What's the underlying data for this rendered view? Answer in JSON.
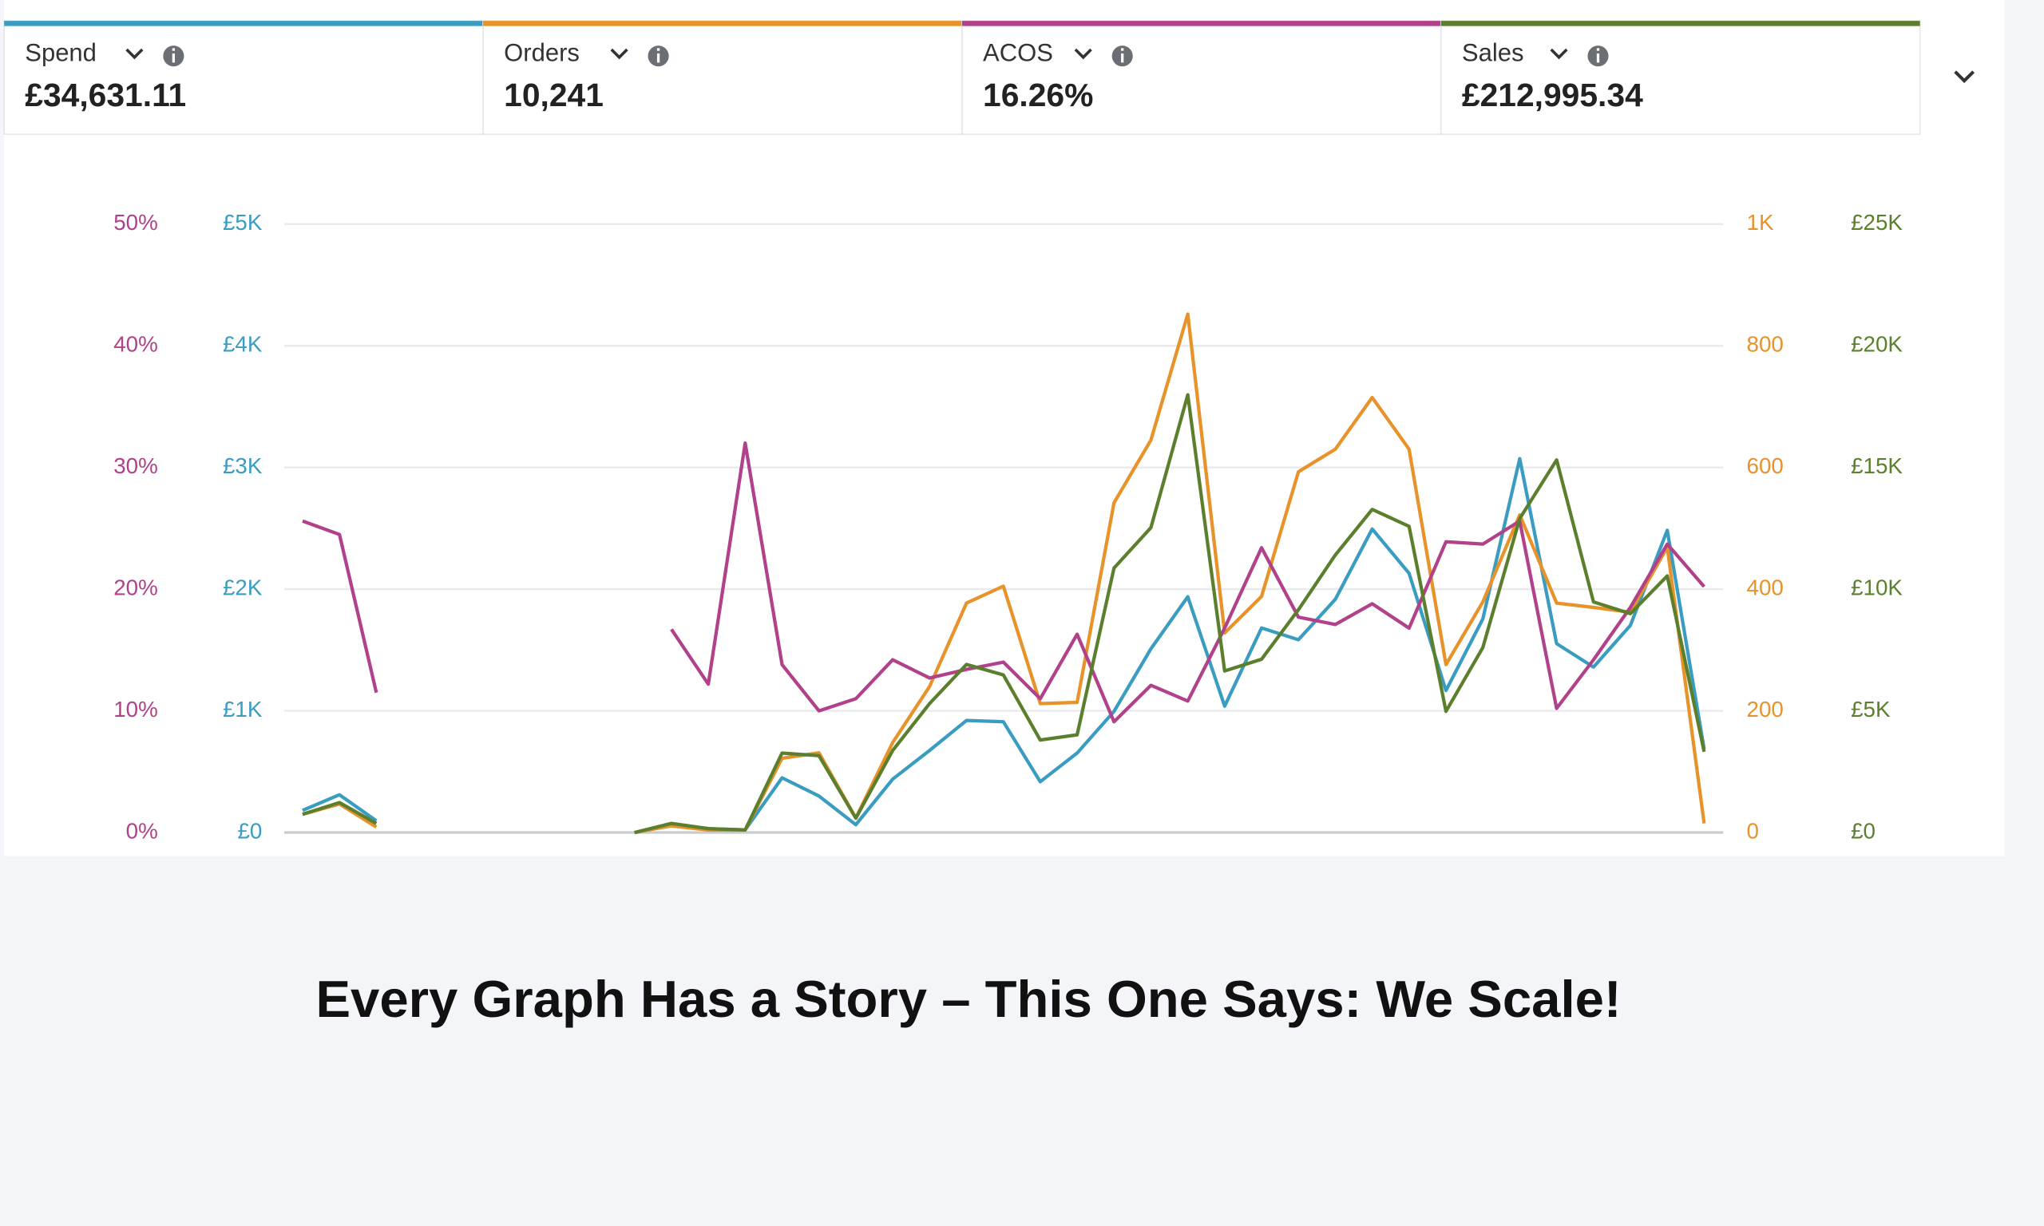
{
  "chart_data": {
    "type": "line",
    "categories": [
      null,
      null,
      null,
      null,
      null,
      null,
      null,
      null,
      null,
      null,
      null,
      null,
      null,
      null,
      null,
      null,
      null,
      null,
      null,
      null,
      null,
      null,
      null,
      null,
      null,
      null,
      null,
      null,
      null,
      null,
      null,
      null,
      null,
      null,
      null,
      null,
      null,
      null,
      null
    ],
    "axes": [
      {
        "id": "acos",
        "side": "left",
        "color": "#b0418a",
        "lim": [
          0,
          50
        ],
        "ticks": [
          {
            "value": 0,
            "label": "0%"
          },
          {
            "value": 10,
            "label": "10%"
          },
          {
            "value": 20,
            "label": "20%"
          },
          {
            "value": 30,
            "label": "30%"
          },
          {
            "value": 40,
            "label": "40%"
          },
          {
            "value": 50,
            "label": "50%"
          }
        ]
      },
      {
        "id": "spend",
        "side": "left",
        "color": "#3b9cc1",
        "lim": [
          0,
          5000
        ],
        "ticks": [
          {
            "value": 0,
            "label": "£0"
          },
          {
            "value": 1000,
            "label": "£1K"
          },
          {
            "value": 2000,
            "label": "£2K"
          },
          {
            "value": 3000,
            "label": "£3K"
          },
          {
            "value": 4000,
            "label": "£4K"
          },
          {
            "value": 5000,
            "label": "£5K"
          }
        ]
      },
      {
        "id": "orders",
        "side": "right",
        "color": "#e8922a",
        "lim": [
          0,
          1000
        ],
        "ticks": [
          0,
          200,
          400,
          600,
          800,
          {
            "value": 1000,
            "label": "1K"
          }
        ]
      },
      {
        "id": "sales",
        "side": "right",
        "color": "#5b7f2c",
        "lim": [
          0,
          25000
        ],
        "ticks": [
          {
            "value": 0,
            "label": "£0"
          },
          {
            "value": 5000,
            "label": "£5K"
          },
          {
            "value": 10000,
            "label": "£10K"
          },
          {
            "value": 15000,
            "label": "£15K"
          },
          {
            "value": 20000,
            "label": "£20K"
          },
          {
            "value": 25000,
            "label": "£25K"
          }
        ]
      }
    ],
    "grid": true,
    "series": [
      {
        "name": "Spend",
        "summary": "£34,631.11",
        "axis": "spend",
        "color": "#3b9cc1",
        "values": [
          182,
          310,
          96,
          null,
          null,
          null,
          null,
          null,
          null,
          0,
          64,
          32,
          21,
          450,
          300,
          64,
          439,
          675,
          921,
          910,
          418,
          653,
          996,
          1510,
          1938,
          1039,
          1681,
          1585,
          1916,
          2495,
          2131,
          1167,
          1756,
          3073,
          1552,
          1360,
          1702,
          2484,
          685
        ]
      },
      {
        "name": "Orders",
        "summary": "10,241",
        "axis": "orders",
        "color": "#e8922a",
        "values": [
          30,
          47,
          9,
          null,
          null,
          null,
          null,
          null,
          null,
          0,
          11,
          4,
          4,
          122,
          131,
          24,
          148,
          240,
          377,
          405,
          212,
          214,
          542,
          645,
          852,
          328,
          388,
          593,
          630,
          715,
          630,
          276,
          379,
          522,
          377,
          370,
          362,
          469,
          15
        ]
      },
      {
        "name": "ACOS",
        "summary": "16.26%",
        "axis": "acos",
        "color": "#b0418a",
        "values": [
          25.6,
          24.5,
          11.5,
          null,
          null,
          null,
          null,
          null,
          null,
          null,
          16.7,
          12.2,
          32.0,
          13.8,
          10.0,
          11.0,
          14.2,
          12.7,
          13.4,
          14.0,
          11.0,
          16.3,
          9.1,
          12.1,
          10.8,
          16.8,
          23.4,
          17.7,
          17.1,
          18.8,
          16.8,
          23.9,
          23.7,
          25.6,
          10.2,
          14.2,
          18.5,
          23.7,
          20.2
        ]
      },
      {
        "name": "Sales",
        "summary": "£212,995.34",
        "axis": "sales",
        "color": "#5b7f2c",
        "values": [
          750,
          1231,
          375,
          null,
          null,
          null,
          null,
          null,
          null,
          0,
          375,
          161,
          107,
          3265,
          3158,
          589,
          3373,
          5300,
          6906,
          6478,
          3801,
          4015,
          10867,
          12527,
          17987,
          6638,
          7120,
          9154,
          11403,
          13276,
          12580,
          4979,
          7602,
          12901,
          15310,
          9475,
          8994,
          10546,
          3319
        ]
      }
    ]
  },
  "caption": "Every Graph Has a Story – This One Says: We Scale!"
}
